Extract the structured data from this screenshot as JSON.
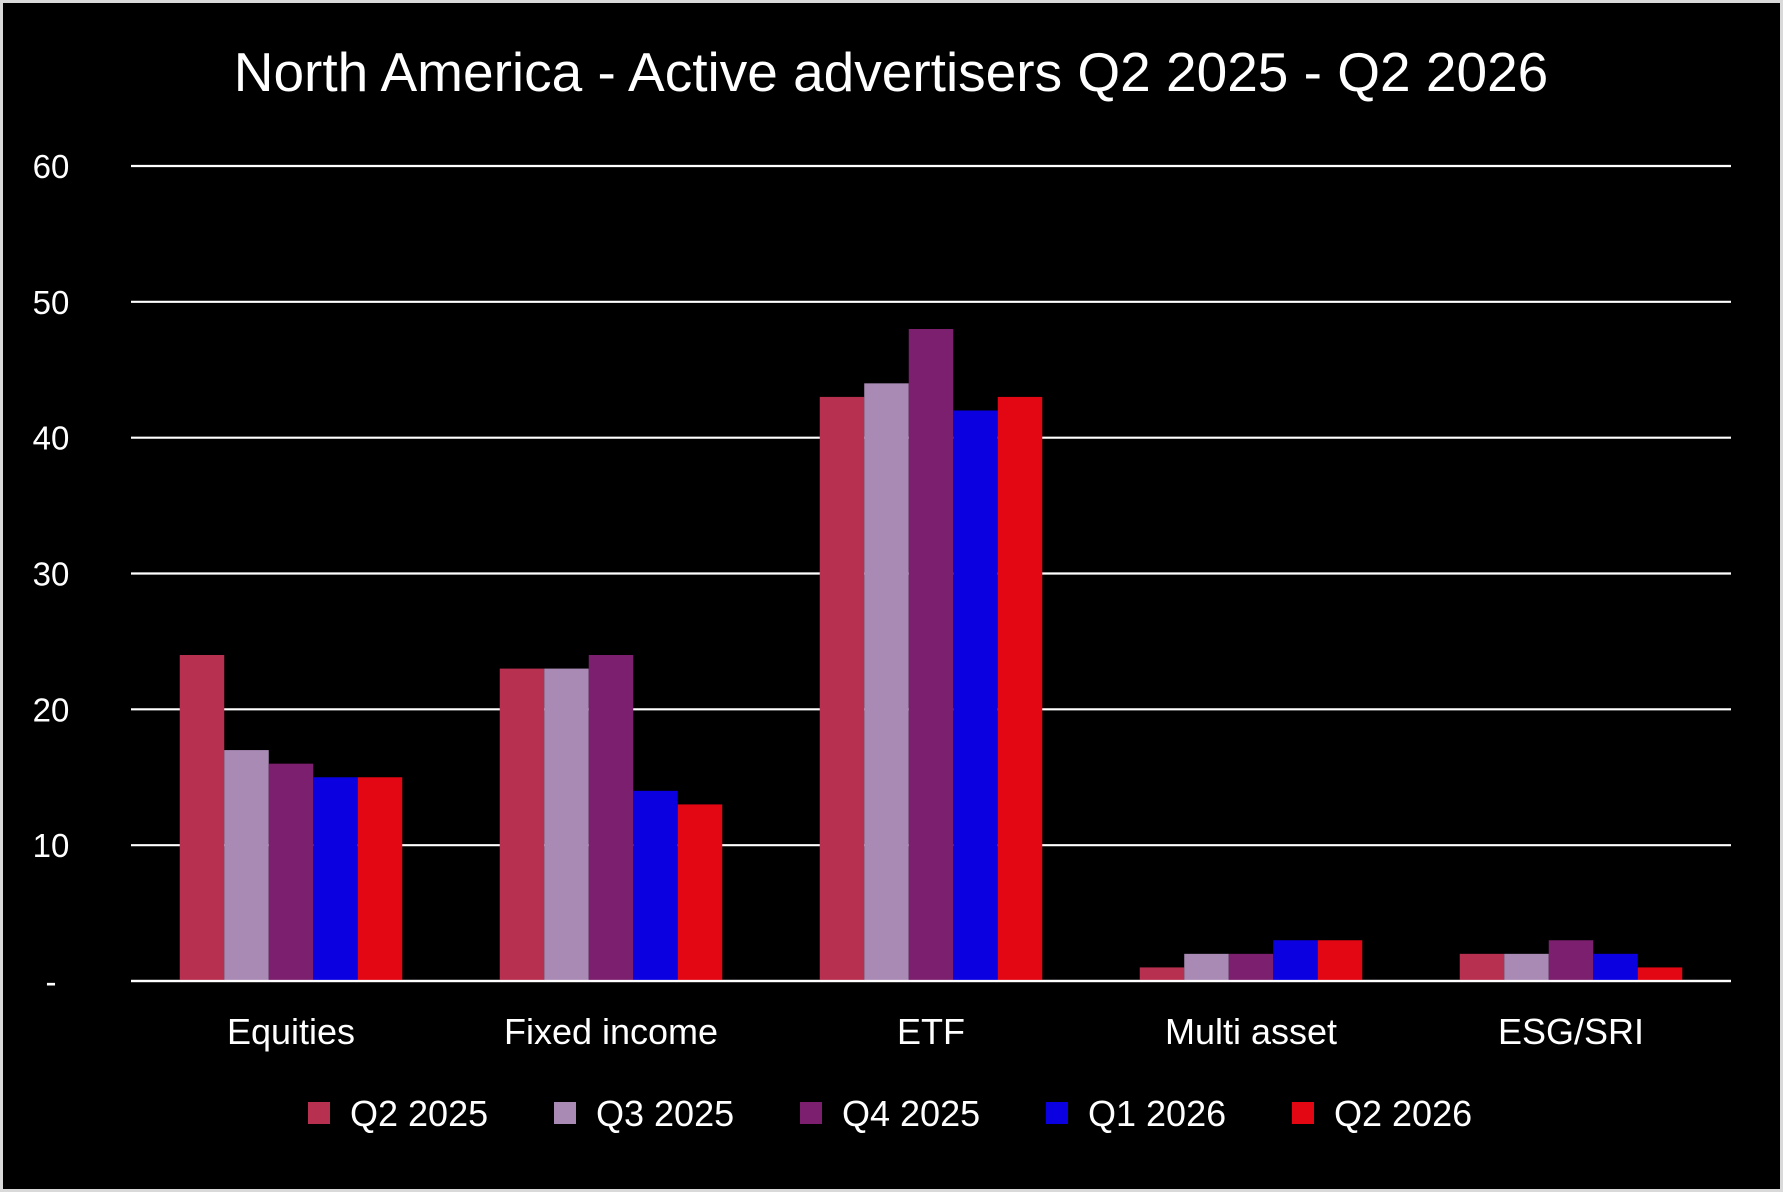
{
  "chart_data": {
    "type": "bar",
    "title": "North America - Active advertisers Q2 2025 - Q2 2026",
    "xlabel": "",
    "ylabel": "",
    "categories": [
      "Equities",
      "Fixed income",
      "ETF",
      "Multi asset",
      "ESG/SRI"
    ],
    "series": [
      {
        "name": "Q2 2025",
        "color": "#b83050",
        "values": [
          24,
          23,
          43,
          1,
          2
        ]
      },
      {
        "name": "Q3 2025",
        "color": "#a98ab5",
        "values": [
          17,
          23,
          44,
          2,
          2
        ]
      },
      {
        "name": "Q4 2025",
        "color": "#7b1f6e",
        "values": [
          16,
          24,
          48,
          2,
          3
        ]
      },
      {
        "name": "Q1 2026",
        "color": "#0a00e0",
        "values": [
          15,
          14,
          42,
          3,
          2
        ]
      },
      {
        "name": "Q2 2026",
        "color": "#e30613",
        "values": [
          15,
          13,
          43,
          3,
          1
        ]
      }
    ],
    "ylim": [
      0,
      60
    ],
    "yticks": [
      {
        "value": 0,
        "label": "-"
      },
      {
        "value": 10,
        "label": "10"
      },
      {
        "value": 20,
        "label": "20"
      },
      {
        "value": 30,
        "label": "30"
      },
      {
        "value": 40,
        "label": "40"
      },
      {
        "value": 50,
        "label": "50"
      },
      {
        "value": 60,
        "label": "60"
      }
    ],
    "grid": true,
    "legend_position": "bottom",
    "colors": {
      "background": "#000000",
      "text": "#ffffff",
      "grid": "#ffffff"
    }
  }
}
